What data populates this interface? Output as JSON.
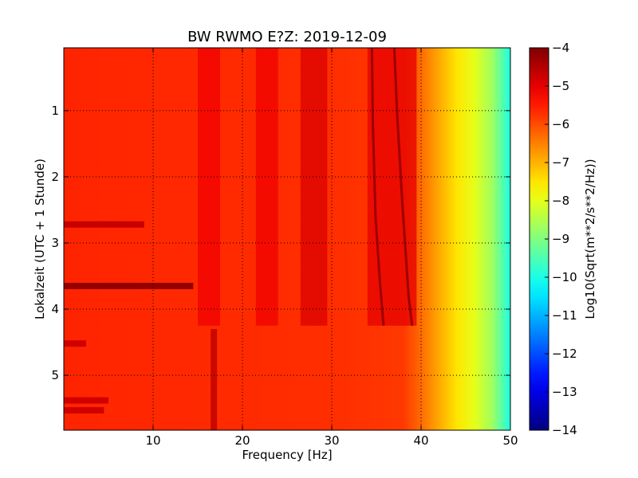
{
  "chart_data": {
    "type": "heatmap",
    "title": "BW RWMO E?Z: 2019-12-09",
    "xlabel": "Frequency [Hz]",
    "ylabel": "Lokalzeit (UTC + 1 Stunde)",
    "xlim": [
      0,
      50
    ],
    "ylim": [
      5.83,
      0.05
    ],
    "y_inverted": true,
    "grid": true,
    "x_ticks": [
      {
        "value": 10,
        "label": "10"
      },
      {
        "value": 20,
        "label": "20"
      },
      {
        "value": 30,
        "label": "30"
      },
      {
        "value": 40,
        "label": "40"
      },
      {
        "value": 50,
        "label": "50"
      }
    ],
    "y_ticks": [
      {
        "value": 1,
        "label": "1"
      },
      {
        "value": 2,
        "label": "2"
      },
      {
        "value": 3,
        "label": "3"
      },
      {
        "value": 4,
        "label": "4"
      },
      {
        "value": 5,
        "label": "5"
      }
    ],
    "colorbar": {
      "label": "Log10(Sqrt(m**2/s**2/Hz))",
      "colormap": "jet",
      "range": [
        -14,
        -4
      ],
      "ticks": [
        {
          "value": -4,
          "label": "−4"
        },
        {
          "value": -5,
          "label": "−5"
        },
        {
          "value": -6,
          "label": "−6"
        },
        {
          "value": -7,
          "label": "−7"
        },
        {
          "value": -8,
          "label": "−8"
        },
        {
          "value": -9,
          "label": "−9"
        },
        {
          "value": -10,
          "label": "−10"
        },
        {
          "value": -11,
          "label": "−11"
        },
        {
          "value": -12,
          "label": "−12"
        },
        {
          "value": -13,
          "label": "−13"
        },
        {
          "value": -14,
          "label": "−14"
        }
      ]
    },
    "baseline_level_by_frequency": [
      {
        "f": 0,
        "level": -5.6
      },
      {
        "f": 15,
        "level": -5.65
      },
      {
        "f": 30,
        "level": -5.7
      },
      {
        "f": 38,
        "level": -5.8
      },
      {
        "f": 40,
        "level": -6.3
      },
      {
        "f": 42,
        "level": -6.9
      },
      {
        "f": 44,
        "level": -7.5
      },
      {
        "f": 46,
        "level": -8.0
      },
      {
        "f": 48,
        "level": -8.7
      },
      {
        "f": 50,
        "level": -10.0
      }
    ],
    "elevated_bands_before_4.25h": [
      {
        "f_from": 15.0,
        "f_to": 17.5,
        "level": -5.1
      },
      {
        "f_from": 21.5,
        "f_to": 24.0,
        "level": -5.1
      },
      {
        "f_from": 26.5,
        "f_to": 29.5,
        "level": -4.9
      },
      {
        "f_from": 34.0,
        "f_to": 39.5,
        "level": -5.0
      }
    ],
    "tonal_lines": [
      {
        "points": [
          {
            "f": 34.5,
            "t": 0.05
          },
          {
            "f": 34.6,
            "t": 1.2
          },
          {
            "f": 34.9,
            "t": 2.6
          },
          {
            "f": 35.4,
            "t": 3.6
          },
          {
            "f": 35.8,
            "t": 4.25
          }
        ],
        "level": -4.3
      },
      {
        "points": [
          {
            "f": 37.0,
            "t": 0.05
          },
          {
            "f": 37.3,
            "t": 1.0
          },
          {
            "f": 37.9,
            "t": 2.4
          },
          {
            "f": 38.6,
            "t": 3.8
          },
          {
            "f": 39.0,
            "t": 4.25
          }
        ],
        "level": -4.3
      }
    ],
    "low_frequency_bursts": [
      {
        "t": 3.65,
        "f_from": 0,
        "f_to": 14.5,
        "level": -4.2
      },
      {
        "t": 2.72,
        "f_from": 0,
        "f_to": 9.0,
        "level": -4.7
      },
      {
        "t": 5.38,
        "f_from": 0,
        "f_to": 5.0,
        "level": -4.8
      },
      {
        "t": 5.53,
        "f_from": 0,
        "f_to": 4.5,
        "level": -4.8
      },
      {
        "t": 4.52,
        "f_from": 0,
        "f_to": 2.5,
        "level": -4.8
      }
    ],
    "broadband_event": {
      "f": 16.8,
      "t_from": 4.3,
      "t_to": 5.83,
      "level": -4.6
    },
    "regime_change_time": 4.25
  }
}
